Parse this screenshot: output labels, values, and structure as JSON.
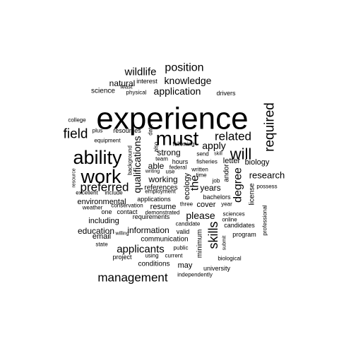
{
  "cloud": {
    "text_color": "#000000",
    "background": "#ffffff",
    "words": [
      {
        "text": "experience",
        "size": 44,
        "rotate": 0
      },
      {
        "text": "must",
        "size": 28,
        "rotate": 0
      },
      {
        "text": "ability",
        "size": 27,
        "rotate": 0
      },
      {
        "text": "work",
        "size": 27,
        "rotate": 0
      },
      {
        "text": "will",
        "size": 22,
        "rotate": 0
      },
      {
        "text": "field",
        "size": 19,
        "rotate": 0
      },
      {
        "text": "required",
        "size": 19,
        "rotate": -90
      },
      {
        "text": "skills",
        "size": 18,
        "rotate": -90
      },
      {
        "text": "related",
        "size": 17,
        "rotate": 0
      },
      {
        "text": "management",
        "size": 17,
        "rotate": 0
      },
      {
        "text": "preferred",
        "size": 17,
        "rotate": 0
      },
      {
        "text": "position",
        "size": 16,
        "rotate": 0
      },
      {
        "text": "wildlife",
        "size": 15,
        "rotate": 0
      },
      {
        "text": "degree",
        "size": 16,
        "rotate": -90
      },
      {
        "text": "the",
        "size": 16,
        "rotate": -90
      },
      {
        "text": "knowledge",
        "size": 14,
        "rotate": 0
      },
      {
        "text": "application",
        "size": 14,
        "rotate": 0
      },
      {
        "text": "applicants",
        "size": 15,
        "rotate": 0
      },
      {
        "text": "apply",
        "size": 14,
        "rotate": 0
      },
      {
        "text": "please",
        "size": 14,
        "rotate": 0
      },
      {
        "text": "qualifications",
        "size": 14,
        "rotate": -90
      },
      {
        "text": "research",
        "size": 13,
        "rotate": 0
      },
      {
        "text": "natural",
        "size": 12,
        "rotate": 0
      },
      {
        "text": "strong",
        "size": 12,
        "rotate": 0
      },
      {
        "text": "able",
        "size": 12,
        "rotate": 0
      },
      {
        "text": "working",
        "size": 12,
        "rotate": 0
      },
      {
        "text": "years",
        "size": 12,
        "rotate": 0
      },
      {
        "text": "education",
        "size": 12,
        "rotate": 0
      },
      {
        "text": "information",
        "size": 12,
        "rotate": 0
      },
      {
        "text": "biology",
        "size": 11,
        "rotate": 0
      },
      {
        "text": "letter",
        "size": 11,
        "rotate": 0
      },
      {
        "text": "science",
        "size": 10,
        "rotate": 0
      },
      {
        "text": "including",
        "size": 11,
        "rotate": 0
      },
      {
        "text": "environmental",
        "size": 11,
        "rotate": 0
      },
      {
        "text": "email",
        "size": 11,
        "rotate": 0
      },
      {
        "text": "resume",
        "size": 11,
        "rotate": 0
      },
      {
        "text": "cover",
        "size": 11,
        "rotate": 0
      },
      {
        "text": "may",
        "size": 11,
        "rotate": 0
      },
      {
        "text": "ecology",
        "size": 11,
        "rotate": -90
      },
      {
        "text": "minimum",
        "size": 10,
        "rotate": -90
      },
      {
        "text": "license",
        "size": 10,
        "rotate": -90
      },
      {
        "text": "andor",
        "size": 10,
        "rotate": -90
      },
      {
        "text": "communication",
        "size": 10,
        "rotate": 0
      },
      {
        "text": "conditions",
        "size": 10,
        "rotate": 0
      },
      {
        "text": "project",
        "size": 9,
        "rotate": 0
      },
      {
        "text": "references",
        "size": 10,
        "rotate": 0
      },
      {
        "text": "drivers",
        "size": 9,
        "rotate": 0
      },
      {
        "text": "interest",
        "size": 9,
        "rotate": 0
      },
      {
        "text": "physical",
        "size": 8,
        "rotate": 0
      },
      {
        "text": "least",
        "size": 8,
        "rotate": 0
      },
      {
        "text": "college",
        "size": 8,
        "rotate": 0
      },
      {
        "text": "plus",
        "size": 8,
        "rotate": 0
      },
      {
        "text": "resources",
        "size": 9,
        "rotate": 0
      },
      {
        "text": "equipment",
        "size": 8,
        "rotate": 0
      },
      {
        "text": "data",
        "size": 8,
        "rotate": -90
      },
      {
        "text": "also",
        "size": 8,
        "rotate": -90
      },
      {
        "text": "background",
        "size": 8,
        "rotate": -90
      },
      {
        "text": "following",
        "size": 8,
        "rotate": 0
      },
      {
        "text": "team",
        "size": 8,
        "rotate": 0
      },
      {
        "text": "hours",
        "size": 9,
        "rotate": 0
      },
      {
        "text": "federal",
        "size": 8,
        "rotate": 0
      },
      {
        "text": "use",
        "size": 8,
        "rotate": 0
      },
      {
        "text": "writing",
        "size": 7,
        "rotate": 0
      },
      {
        "text": "written",
        "size": 8,
        "rotate": 0
      },
      {
        "text": "time",
        "size": 8,
        "rotate": 0
      },
      {
        "text": "send",
        "size": 8,
        "rotate": 0
      },
      {
        "text": "skill",
        "size": 7,
        "rotate": 0
      },
      {
        "text": "fisheries",
        "size": 8,
        "rotate": 0
      },
      {
        "text": "resource",
        "size": 7,
        "rotate": -90
      },
      {
        "text": "excellent",
        "size": 8,
        "rotate": 0
      },
      {
        "text": "include",
        "size": 8,
        "rotate": 0
      },
      {
        "text": "employment",
        "size": 8,
        "rotate": 0
      },
      {
        "text": "job",
        "size": 8,
        "rotate": 0
      },
      {
        "text": "possess",
        "size": 8,
        "rotate": 0
      },
      {
        "text": "weather",
        "size": 8,
        "rotate": 0
      },
      {
        "text": "conservation",
        "size": 8,
        "rotate": 0
      },
      {
        "text": "applications",
        "size": 9,
        "rotate": 0
      },
      {
        "text": "bachelors",
        "size": 9,
        "rotate": 0
      },
      {
        "text": "year",
        "size": 8,
        "rotate": 0
      },
      {
        "text": "one",
        "size": 9,
        "rotate": 0
      },
      {
        "text": "contact",
        "size": 9,
        "rotate": 0
      },
      {
        "text": "requirements",
        "size": 9,
        "rotate": 0
      },
      {
        "text": "three",
        "size": 8,
        "rotate": 0
      },
      {
        "text": "demonstrated",
        "size": 8,
        "rotate": 0
      },
      {
        "text": "sciences",
        "size": 8,
        "rotate": 0
      },
      {
        "text": "online",
        "size": 8,
        "rotate": 0
      },
      {
        "text": "professional",
        "size": 8,
        "rotate": -90
      },
      {
        "text": "candidate",
        "size": 8,
        "rotate": 0
      },
      {
        "text": "candidates",
        "size": 9,
        "rotate": 0
      },
      {
        "text": "valid",
        "size": 9,
        "rotate": 0
      },
      {
        "text": "willing",
        "size": 7,
        "rotate": 0
      },
      {
        "text": "program",
        "size": 9,
        "rotate": 0
      },
      {
        "text": "state",
        "size": 8,
        "rotate": 0
      },
      {
        "text": "public",
        "size": 8,
        "rotate": 0
      },
      {
        "text": "submit",
        "size": 7,
        "rotate": -90
      },
      {
        "text": "using",
        "size": 8,
        "rotate": 0
      },
      {
        "text": "current",
        "size": 8,
        "rotate": 0
      },
      {
        "text": "biological",
        "size": 8,
        "rotate": 0
      },
      {
        "text": "university",
        "size": 9,
        "rotate": 0
      },
      {
        "text": "independently",
        "size": 8,
        "rotate": 0
      }
    ]
  }
}
